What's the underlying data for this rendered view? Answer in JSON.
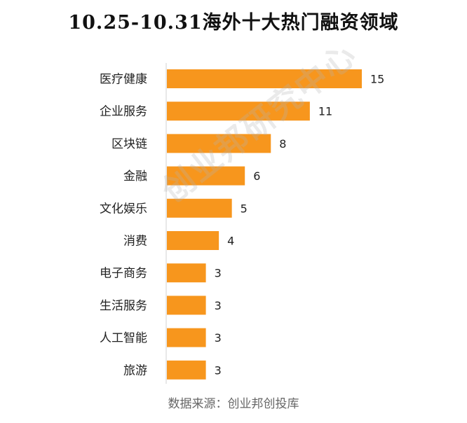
{
  "chart_data": {
    "type": "bar",
    "orientation": "horizontal",
    "title": "10.25-10.31海外十大热门融资领域",
    "categories": [
      "医疗健康",
      "企业服务",
      "区块链",
      "金融",
      "文化娱乐",
      "消费",
      "电子商务",
      "生活服务",
      "人工智能",
      "旅游"
    ],
    "values": [
      15,
      11,
      8,
      6,
      5,
      4,
      3,
      3,
      3,
      3
    ],
    "bar_color": "#f7961d",
    "xlim": [
      0,
      15
    ],
    "grid": false,
    "legend": "none"
  },
  "source": "数据来源：创业邦创投库",
  "watermark": "创业邦研究中心"
}
